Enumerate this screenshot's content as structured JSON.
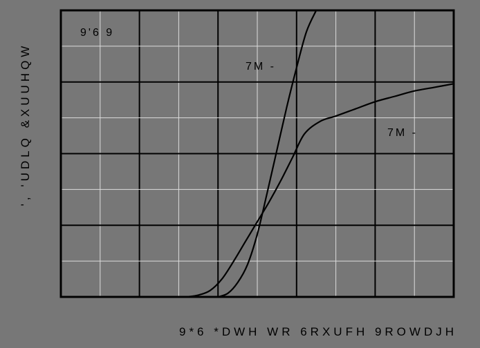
{
  "chart_data": {
    "type": "line",
    "xlabel": "9*6 *DWH WR 6RXUFH 9ROWDJH",
    "ylabel": "',  'UDLQ &XUUHQW",
    "annotation": "9'6  9",
    "grid": true,
    "xlim": [
      0,
      10
    ],
    "ylim": [
      0,
      8
    ],
    "series": [
      {
        "name": "7M  -",
        "x": [
          3.2,
          3.5,
          3.8,
          4.1,
          4.4,
          4.7,
          5.0,
          5.3,
          5.6,
          5.9,
          6.2,
          6.6,
          7.0,
          7.5,
          8.0,
          8.5,
          9.0,
          9.5,
          10.0
        ],
        "y": [
          0.0,
          0.05,
          0.18,
          0.5,
          1.0,
          1.55,
          2.1,
          2.65,
          3.25,
          3.9,
          4.55,
          4.9,
          5.05,
          5.25,
          5.45,
          5.6,
          5.75,
          5.85,
          5.95
        ]
      },
      {
        "name": "7M  -",
        "x": [
          4.0,
          4.25,
          4.5,
          4.75,
          5.0,
          5.25,
          5.5,
          5.75,
          6.0,
          6.25,
          6.5
        ],
        "y": [
          0.0,
          0.1,
          0.4,
          0.9,
          1.75,
          2.9,
          4.1,
          5.3,
          6.4,
          7.4,
          8.0
        ]
      }
    ],
    "series_label_positions": [
      "lower",
      "upper"
    ]
  }
}
